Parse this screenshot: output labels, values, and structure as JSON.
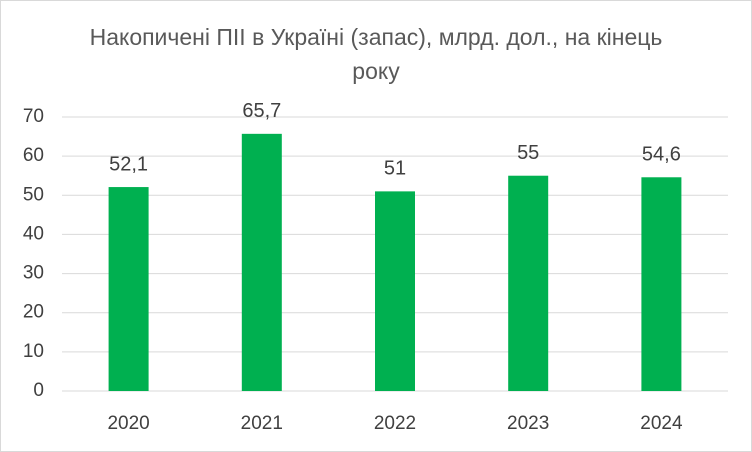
{
  "chart_data": {
    "type": "bar",
    "title": "Накопичені ПІІ в Україні (запас), млрд. дол., на кінець року",
    "categories": [
      "2020",
      "2021",
      "2022",
      "2023",
      "2024"
    ],
    "values": [
      52.1,
      65.7,
      51,
      55,
      54.6
    ],
    "value_labels": [
      "52,1",
      "65,7",
      "51",
      "55",
      "54,6"
    ],
    "color": "#00b050",
    "ylim": [
      0,
      70
    ],
    "yticks": [
      0,
      10,
      20,
      30,
      40,
      50,
      60,
      70
    ],
    "grid": true
  }
}
